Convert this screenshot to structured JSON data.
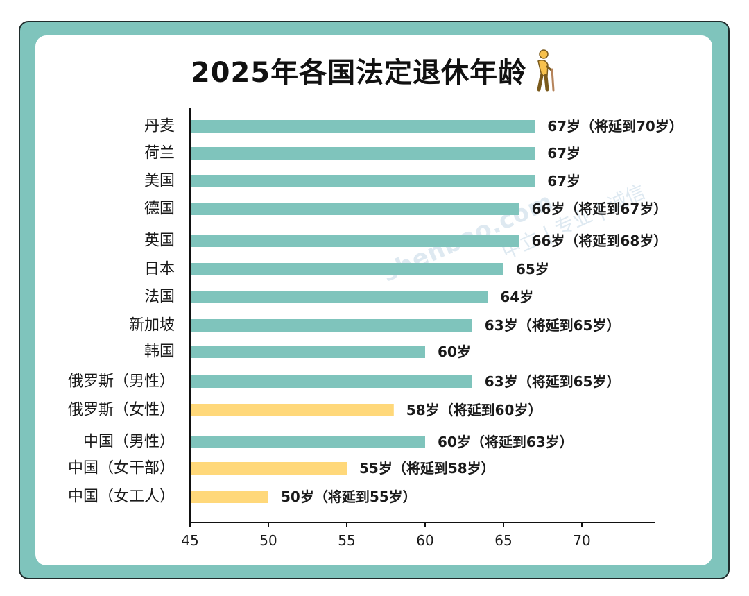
{
  "title": "2025年各国法定退休年龄",
  "title_icon": "elderly-person-icon",
  "colors": {
    "frame": "#7fc4bc",
    "teal_bar": "#7fc4bc",
    "yellow_bar": "#ffd87a",
    "text": "#1a1a1a"
  },
  "watermark": {
    "line1": "shenbao.com",
    "line2": "中立 | 专业 | 诚信"
  },
  "chart_data": {
    "type": "bar",
    "orientation": "horizontal",
    "title": "2025年各国法定退休年龄",
    "xlim": [
      45,
      75
    ],
    "xticks": [
      45,
      50,
      55,
      60,
      65,
      70
    ],
    "grid": false,
    "categories": [
      "丹麦",
      "荷兰",
      "美国",
      "德国",
      "英国",
      "日本",
      "法国",
      "新加坡",
      "韩国",
      "俄罗斯（男性）",
      "俄罗斯（女性）",
      "中国（男性）",
      "中国（女干部）",
      "中国（女工人）"
    ],
    "values": [
      67,
      67,
      67,
      66,
      66,
      65,
      64,
      63,
      60,
      63,
      58,
      60,
      55,
      50
    ],
    "bar_colors": [
      "teal",
      "teal",
      "teal",
      "teal",
      "teal",
      "teal",
      "teal",
      "teal",
      "teal",
      "teal",
      "yellow",
      "teal",
      "yellow",
      "yellow"
    ],
    "data_labels": [
      "67岁（将延到70岁）",
      "67岁",
      "67岁",
      "66岁（将延到67岁）",
      "66岁（将延到68岁）",
      "65岁",
      "64岁",
      "63岁（将延到65岁）",
      "60岁",
      "63岁（将延到65岁）",
      "58岁（将延到60岁）",
      "60岁（将延到63岁）",
      "55岁（将延到58岁）",
      "50岁（将延到55岁）"
    ]
  }
}
